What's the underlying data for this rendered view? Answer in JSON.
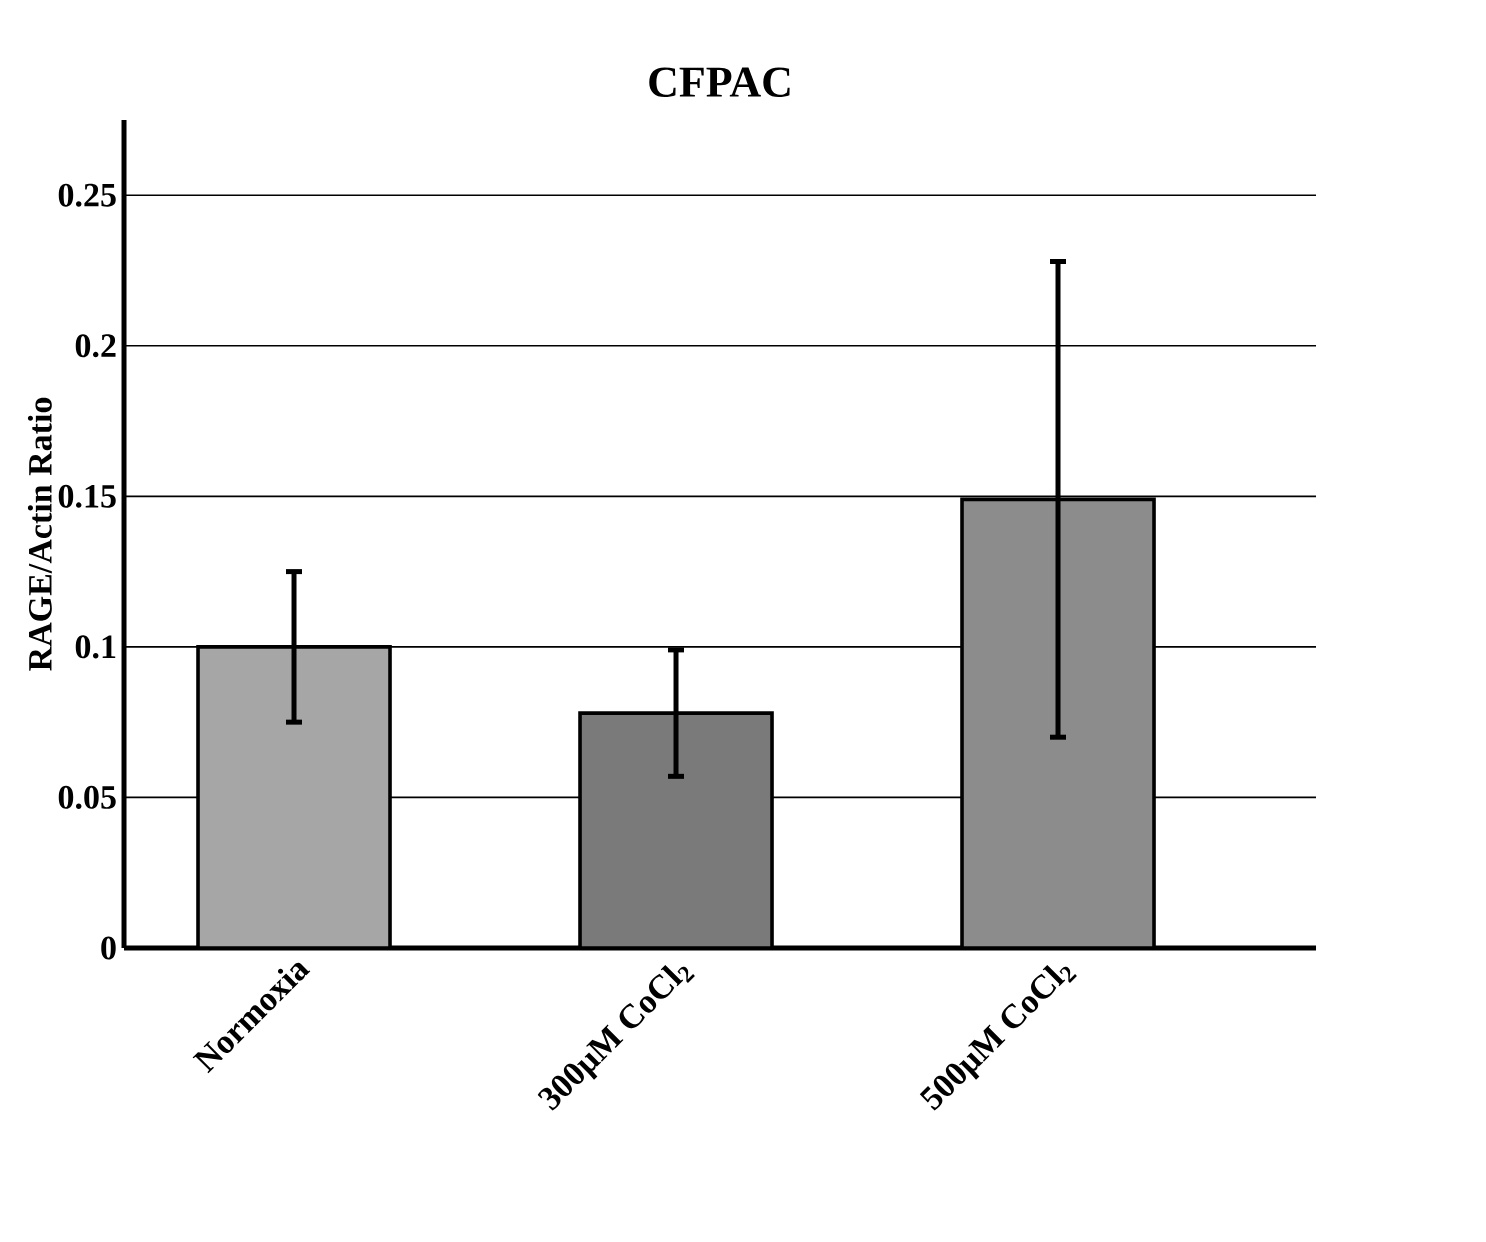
{
  "chart_data": {
    "type": "bar",
    "title": "CFPAC",
    "ylabel": "RAGE/Actin Ratio",
    "categories": [
      "Normoxia",
      "300μM CoCl$_{2}$",
      "500μM CoCl$_{2}$"
    ],
    "values": [
      0.1,
      0.078,
      0.149
    ],
    "errors": [
      0.025,
      0.021,
      0.079
    ],
    "colors": [
      "#a6a6a6",
      "#7a7a7a",
      "#8c8c8c"
    ],
    "ylim": [
      0,
      0.275
    ],
    "yticks": [
      0,
      0.05,
      0.1,
      0.15,
      0.2,
      0.25
    ],
    "grid": "y"
  }
}
